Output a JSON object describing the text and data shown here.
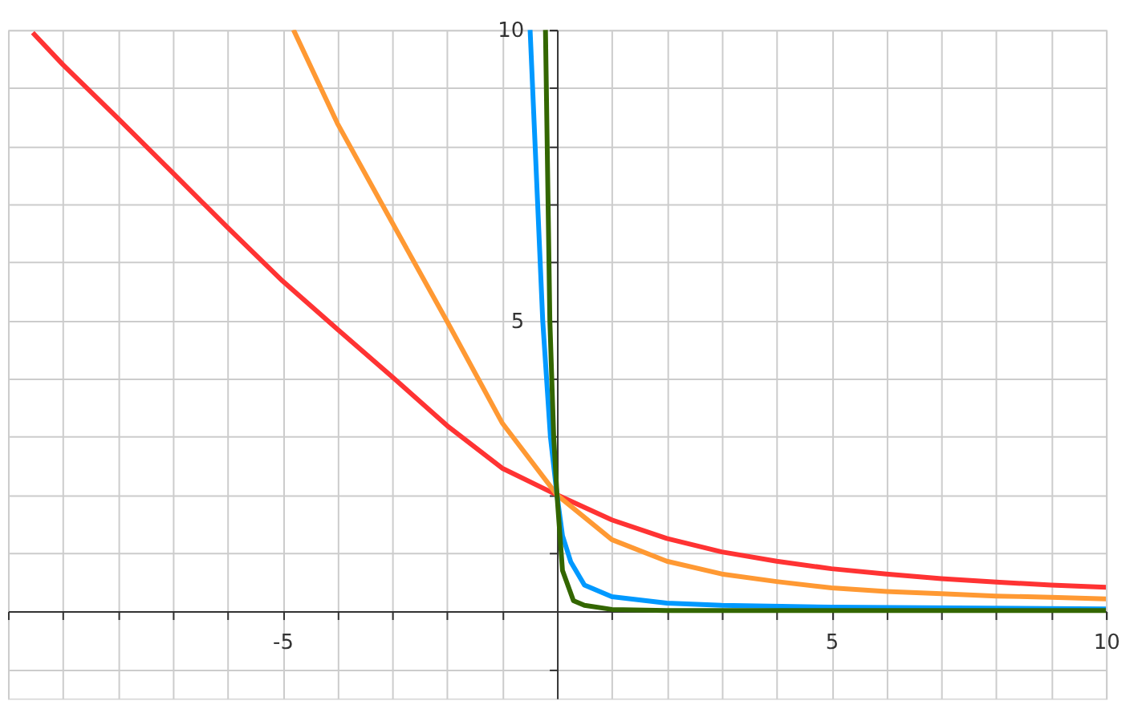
{
  "chart_data": {
    "type": "line",
    "xlim": [
      -10,
      10
    ],
    "ylim": [
      -1.5,
      10
    ],
    "grid": true,
    "line_style": "solid",
    "marker": "none",
    "xticks": [
      {
        "value": -10,
        "label": null
      },
      {
        "value": -9,
        "label": null
      },
      {
        "value": -8,
        "label": null
      },
      {
        "value": -7,
        "label": null
      },
      {
        "value": -6,
        "label": null
      },
      {
        "value": -5,
        "label": "-5"
      },
      {
        "value": -4,
        "label": null
      },
      {
        "value": -3,
        "label": null
      },
      {
        "value": -2,
        "label": null
      },
      {
        "value": -1,
        "label": null
      },
      {
        "value": 1,
        "label": null
      },
      {
        "value": 2,
        "label": null
      },
      {
        "value": 3,
        "label": null
      },
      {
        "value": 4,
        "label": null
      },
      {
        "value": 5,
        "label": "5"
      },
      {
        "value": 6,
        "label": null
      },
      {
        "value": 7,
        "label": null
      },
      {
        "value": 8,
        "label": null
      },
      {
        "value": 9,
        "label": null
      },
      {
        "value": 10,
        "label": "10"
      }
    ],
    "yticks": [
      {
        "value": -1,
        "label": null
      },
      {
        "value": 1,
        "label": null
      },
      {
        "value": 2,
        "label": null
      },
      {
        "value": 3,
        "label": null
      },
      {
        "value": 4,
        "label": null
      },
      {
        "value": 5,
        "label": "5"
      },
      {
        "value": 6,
        "label": null
      },
      {
        "value": 7,
        "label": null
      },
      {
        "value": 8,
        "label": null
      },
      {
        "value": 9,
        "label": null
      },
      {
        "value": 10,
        "label": "10"
      }
    ],
    "series": [
      {
        "color": "#ff3333",
        "x": [
          -9.55,
          -9,
          -8,
          -7,
          -6,
          -5,
          -4,
          -3,
          -2,
          -1,
          0,
          1,
          2,
          3,
          4,
          5,
          6,
          7,
          8,
          9,
          10
        ],
        "values": [
          9.95,
          9.4,
          8.48,
          7.54,
          6.6,
          5.68,
          4.85,
          4.03,
          3.19,
          2.46,
          2,
          1.57,
          1.25,
          1.02,
          0.86,
          0.73,
          0.64,
          0.56,
          0.5,
          0.45,
          0.41
        ]
      },
      {
        "color": "#ff9933",
        "x": [
          -4.8,
          -4,
          -3,
          -2,
          -1,
          0,
          1,
          2,
          3,
          4,
          5,
          6,
          7,
          8,
          9,
          10
        ],
        "values": [
          10,
          8.39,
          6.68,
          4.98,
          3.24,
          2,
          1.23,
          0.86,
          0.64,
          0.51,
          0.4,
          0.34,
          0.3,
          0.26,
          0.24,
          0.21
        ]
      },
      {
        "color": "#0099ff",
        "x": [
          -0.49,
          -0.26,
          -0.12,
          0,
          0.1,
          0.25,
          0.5,
          1,
          2,
          3,
          5,
          10
        ],
        "values": [
          10,
          5,
          3,
          2,
          1.3,
          0.85,
          0.45,
          0.25,
          0.14,
          0.1,
          0.07,
          0.04
        ]
      },
      {
        "color": "#336600",
        "x": [
          -0.21,
          -0.13,
          -0.06,
          0,
          0.1,
          0.3,
          0.5,
          1,
          2,
          5,
          10
        ],
        "values": [
          10,
          5,
          3,
          2,
          0.7,
          0.18,
          0.1,
          0.03,
          0.01,
          0.01,
          0.01
        ]
      }
    ]
  }
}
